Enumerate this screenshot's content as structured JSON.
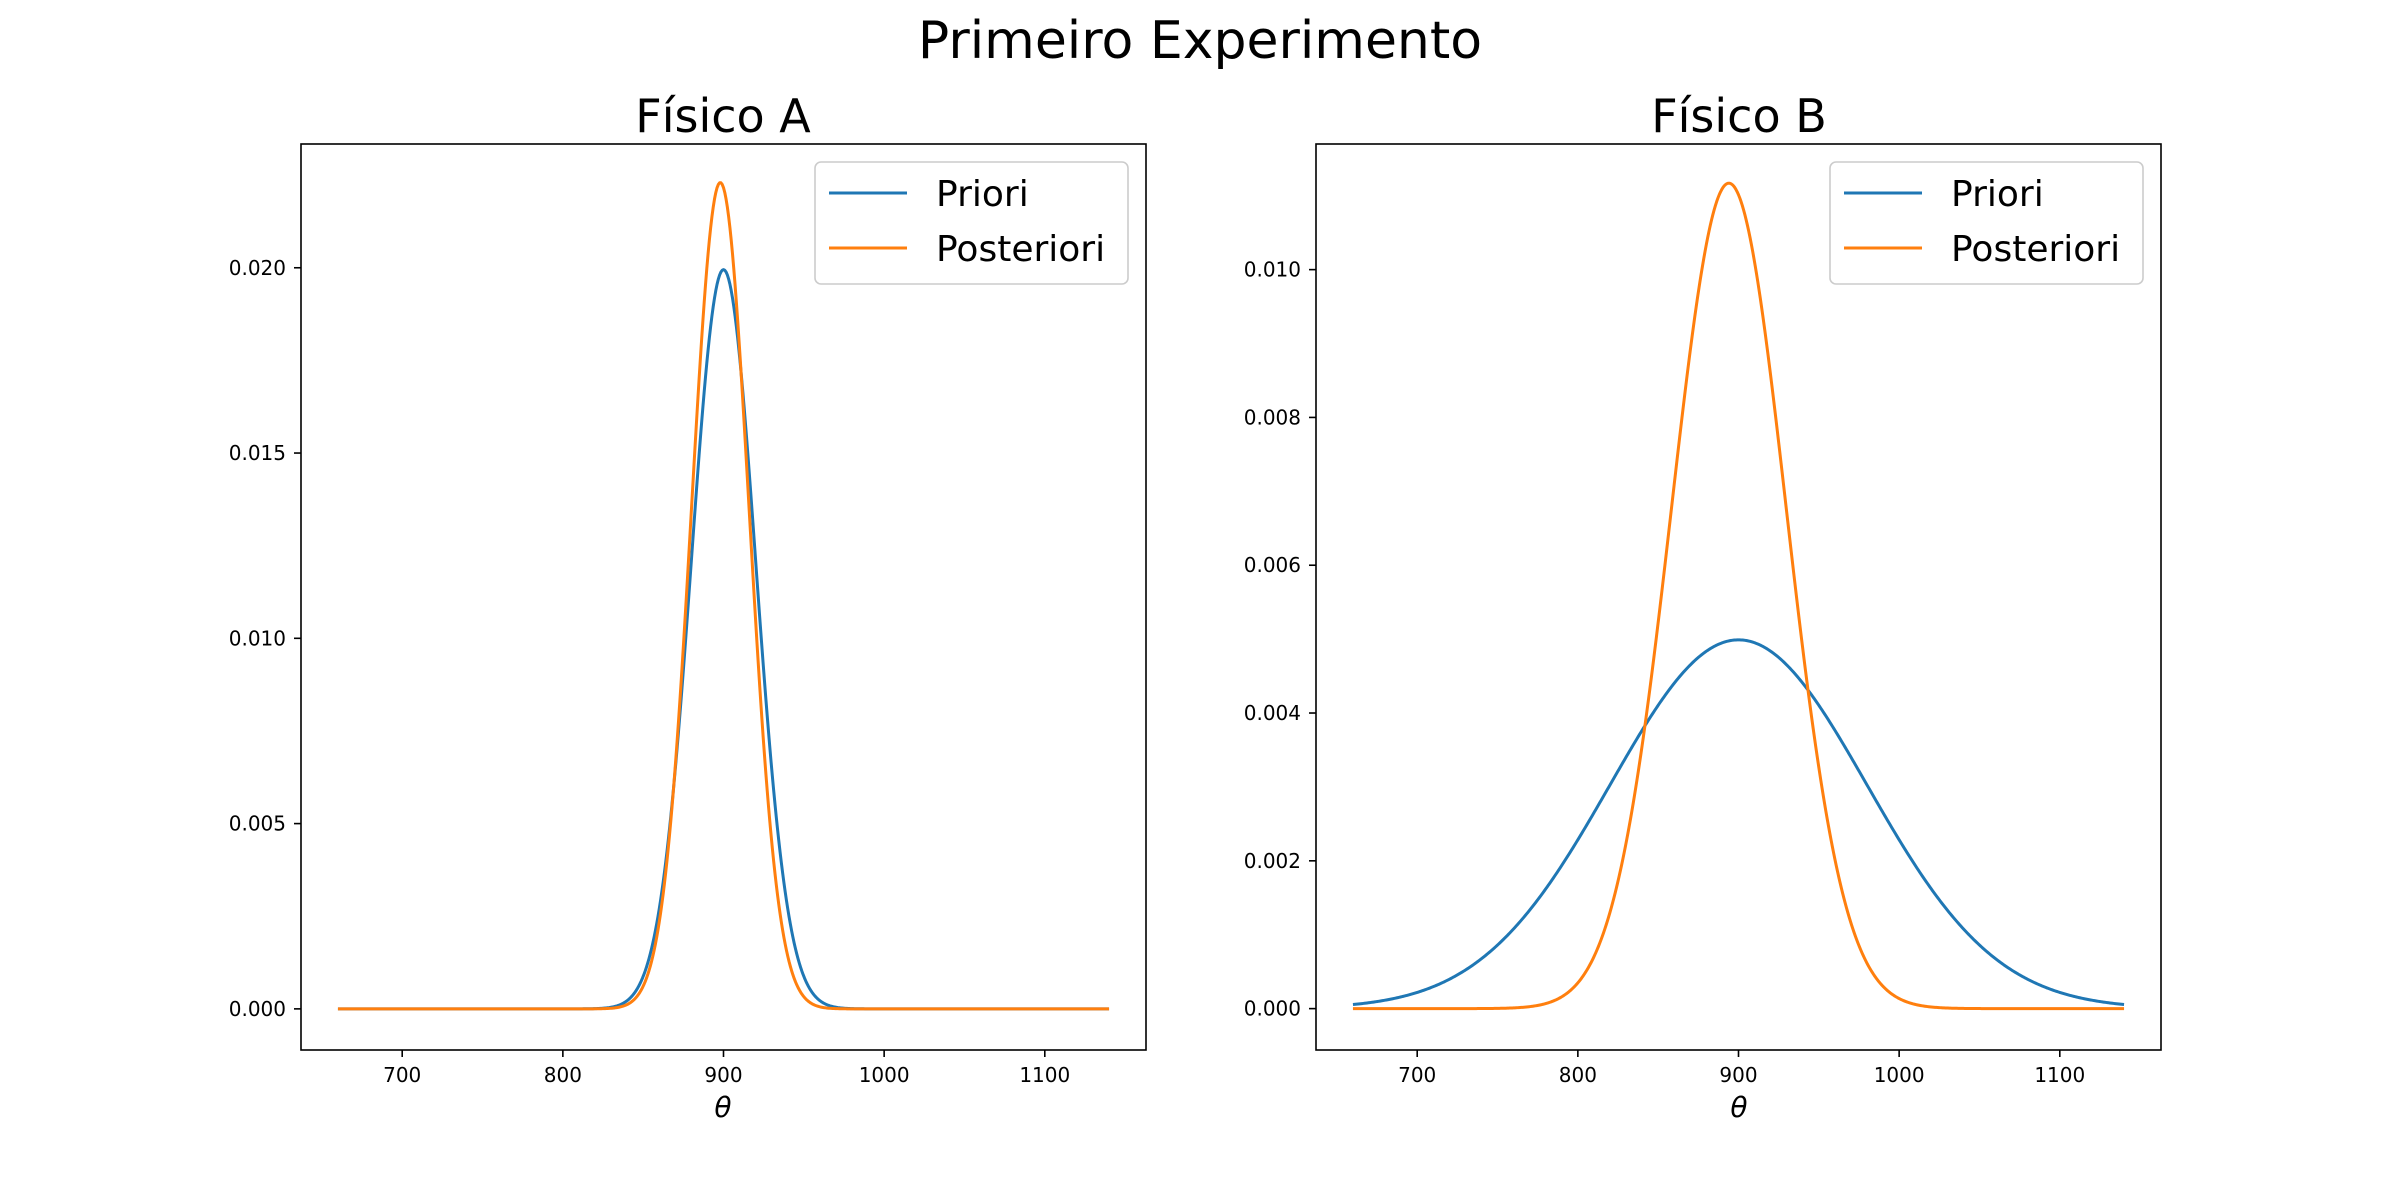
{
  "figure": {
    "title": "Primeiro Experimento",
    "line_colors": {
      "Priori": "#1f77b4",
      "Posteriori": "#ff7f0e"
    }
  },
  "chart_data": [
    {
      "type": "line",
      "title": "Físico A",
      "xlabel": "θ",
      "ylabel": "",
      "xlim": [
        637,
        1163
      ],
      "ylim": [
        -0.00111,
        0.02334
      ],
      "xticks": [
        700,
        800,
        900,
        1000,
        1100
      ],
      "yticks": [
        0.0,
        0.005,
        0.01,
        0.015,
        0.02
      ],
      "ytick_labels": [
        "0.000",
        "0.005",
        "0.010",
        "0.015",
        "0.020"
      ],
      "grid": false,
      "legend": "top-right",
      "x_range": [
        660,
        1140
      ],
      "series": [
        {
          "name": "Priori",
          "color": "#1f77b4",
          "distribution": "normal",
          "mean": 900,
          "sd": 20,
          "peak": 0.01995
        },
        {
          "name": "Posteriori",
          "color": "#ff7f0e",
          "distribution": "normal",
          "mean": 898,
          "sd": 17.9,
          "peak": 0.0223
        }
      ]
    },
    {
      "type": "line",
      "title": "Físico B",
      "xlabel": "θ",
      "ylabel": "",
      "xlim": [
        637,
        1163
      ],
      "ylim": [
        -0.00056,
        0.0117
      ],
      "xticks": [
        700,
        800,
        900,
        1000,
        1100
      ],
      "yticks": [
        0.0,
        0.002,
        0.004,
        0.006,
        0.008,
        0.01
      ],
      "ytick_labels": [
        "0.000",
        "0.002",
        "0.004",
        "0.006",
        "0.008",
        "0.010"
      ],
      "grid": false,
      "legend": "top-right",
      "x_range": [
        660,
        1140
      ],
      "series": [
        {
          "name": "Priori",
          "color": "#1f77b4",
          "distribution": "normal",
          "mean": 900,
          "sd": 80,
          "peak": 0.00499
        },
        {
          "name": "Posteriori",
          "color": "#ff7f0e",
          "distribution": "normal",
          "mean": 894,
          "sd": 35.7,
          "peak": 0.01117
        }
      ]
    }
  ]
}
